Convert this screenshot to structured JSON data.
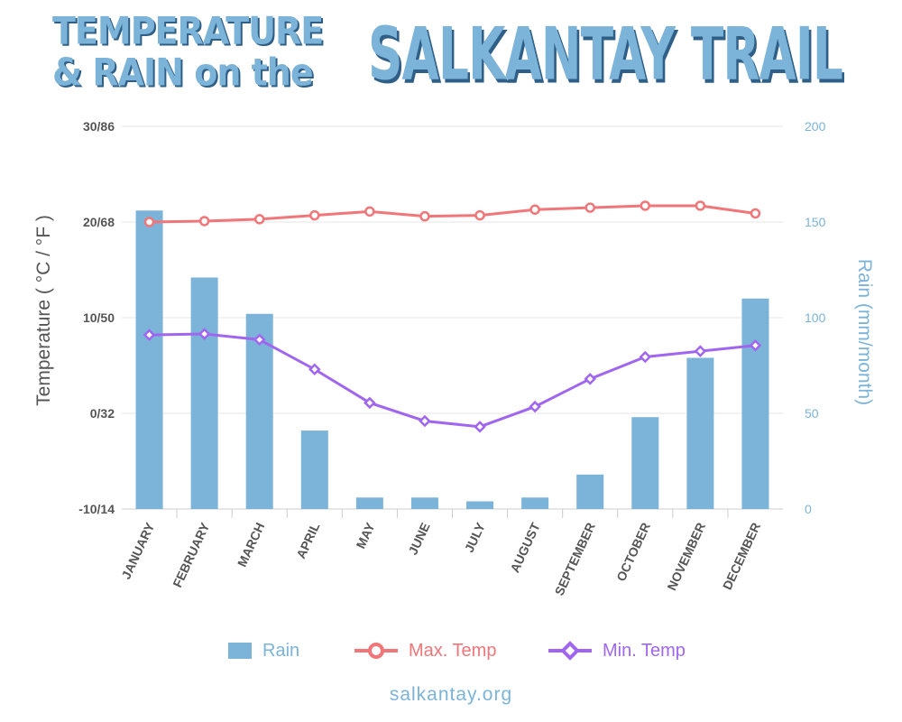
{
  "title": {
    "line1": "TEMPERATURE",
    "line2": "& RAIN on the",
    "big": "SALKANTAY TRAIL"
  },
  "footer": "salkantay.org",
  "colors": {
    "rain": "#7bb3d9",
    "max_temp": "#f07679",
    "min_temp": "#a066f0",
    "title": "#7bb3d9",
    "axis_text": "#555555",
    "grid": "#e6e6e6"
  },
  "chart_data": {
    "type": "bar+line",
    "categories": [
      "JANUARY",
      "FEBRUARY",
      "MARCH",
      "APRIL",
      "MAY",
      "JUNE",
      "JULY",
      "AUGUST",
      "SEPTEMBER",
      "OCTOBER",
      "NOVEMBER",
      "DECEMBER"
    ],
    "left_axis": {
      "label": "Temperature ( °C / °F )",
      "range": [
        -10,
        30
      ],
      "ticks": [
        {
          "value": 30,
          "label": "30/86"
        },
        {
          "value": 20,
          "label": "20/68"
        },
        {
          "value": 10,
          "label": "10/50"
        },
        {
          "value": 0,
          "label": "0/32"
        },
        {
          "value": -10,
          "label": "-10/14"
        }
      ]
    },
    "right_axis": {
      "label": "Rain (mm/month)",
      "range": [
        0,
        200
      ],
      "ticks": [
        200,
        150,
        100,
        50,
        0
      ]
    },
    "series": [
      {
        "name": "Rain",
        "type": "bar",
        "axis": "right",
        "values": [
          156,
          121,
          102,
          41,
          6,
          6,
          4,
          6,
          18,
          48,
          79,
          110
        ]
      },
      {
        "name": "Max. Temp",
        "type": "line",
        "axis": "left",
        "marker": "circle",
        "values": [
          20.0,
          20.1,
          20.3,
          20.7,
          21.1,
          20.6,
          20.7,
          21.3,
          21.5,
          21.7,
          21.7,
          20.9
        ]
      },
      {
        "name": "Min. Temp",
        "type": "line",
        "axis": "left",
        "marker": "diamond",
        "values": [
          8.2,
          8.3,
          7.7,
          4.6,
          1.1,
          -0.8,
          -1.4,
          0.7,
          3.6,
          5.9,
          6.5,
          7.1
        ]
      }
    ],
    "legend_position": "bottom",
    "grid": true
  }
}
